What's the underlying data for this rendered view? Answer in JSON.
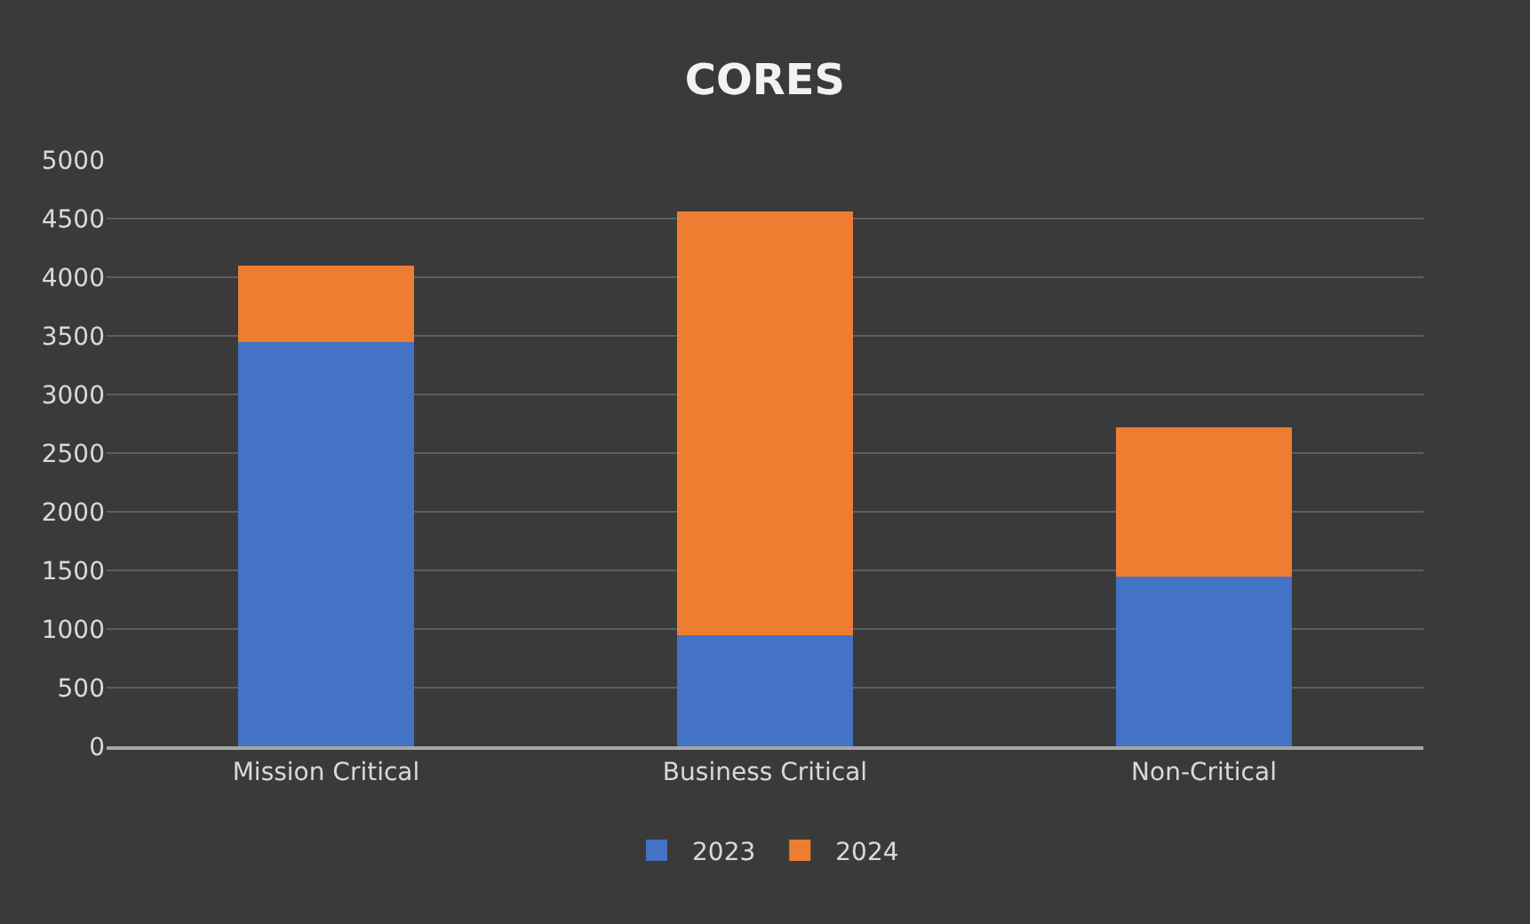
{
  "chart_data": {
    "type": "bar",
    "title": "CORES",
    "categories": [
      "Mission Critical",
      "Business Critical",
      "Non-Critical"
    ],
    "stacked": true,
    "series": [
      {
        "name": "2023",
        "color": "#4472c4",
        "values": [
          3450,
          950,
          1450
        ]
      },
      {
        "name": "2024",
        "color": "#ed7d31",
        "values": [
          650,
          3610,
          1270
        ]
      }
    ],
    "ylim": [
      0,
      5000
    ],
    "yticks": [
      0,
      500,
      1000,
      1500,
      2000,
      2500,
      3000,
      3500,
      4000,
      4500,
      5000
    ],
    "grid": "y",
    "legend": "bottom"
  }
}
